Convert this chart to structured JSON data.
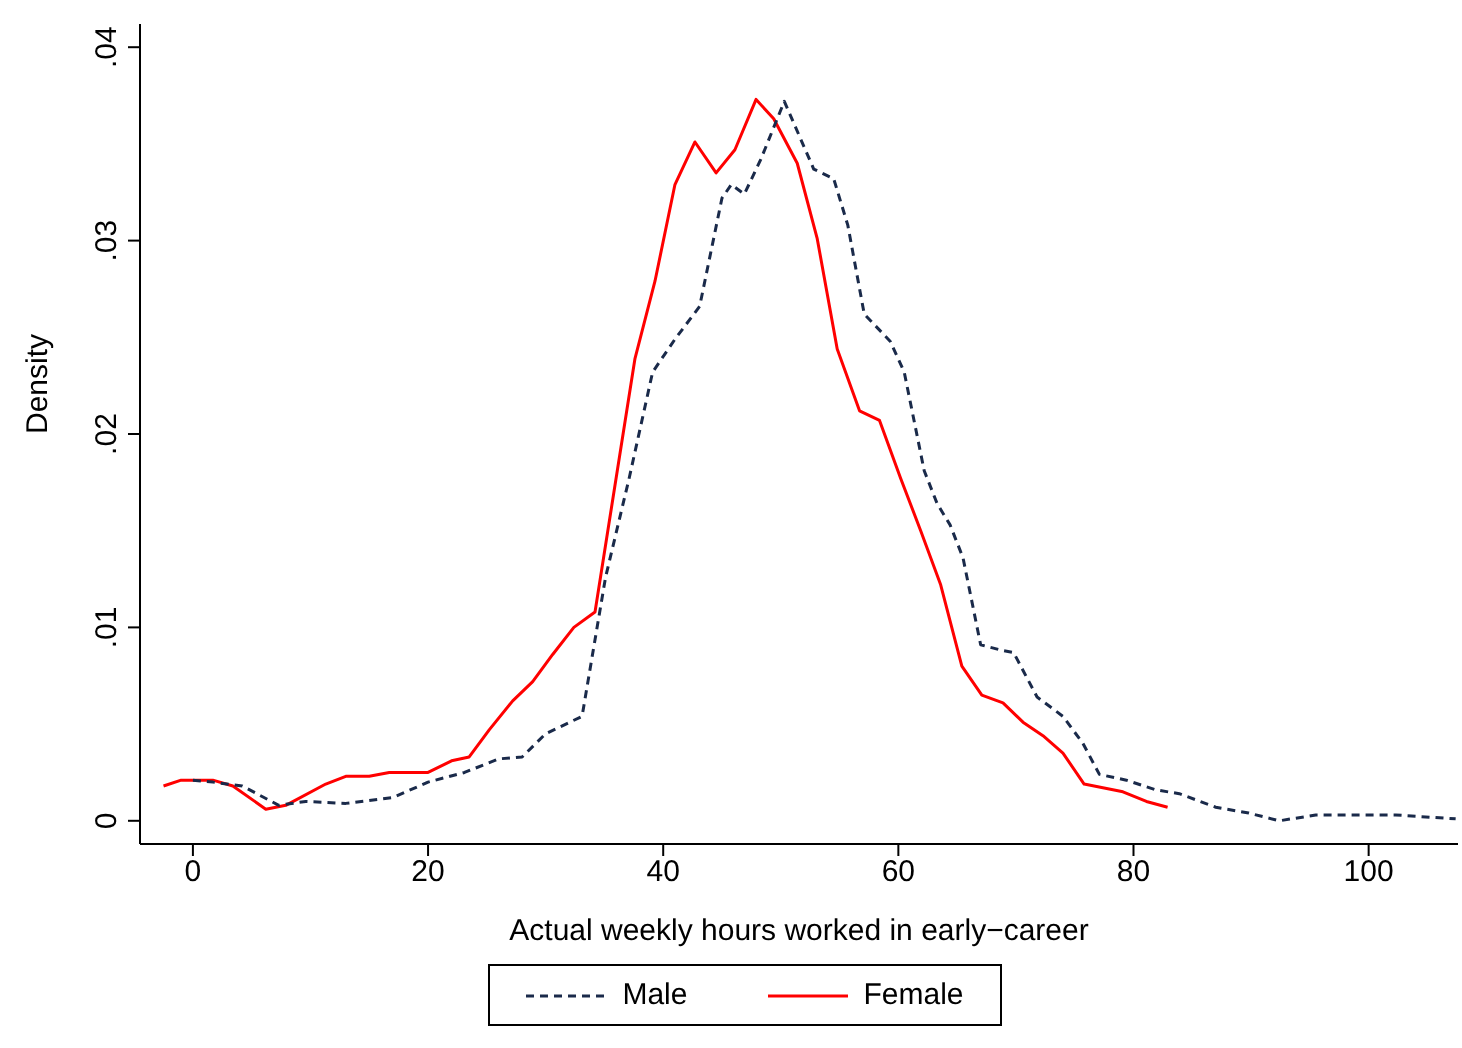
{
  "chart_data": {
    "type": "line",
    "xlabel": "Actual weekly hours worked in early−career",
    "ylabel": "Density",
    "xlim": [
      -4.5,
      107.6
    ],
    "xticks": [
      0,
      20,
      40,
      60,
      80,
      100
    ],
    "ylim": [
      -0.0012,
      0.0412
    ],
    "yticks": [
      {
        "value": 0,
        "label": "0"
      },
      {
        "value": 0.01,
        "label": ".01"
      },
      {
        "value": 0.02,
        "label": ".02"
      },
      {
        "value": 0.03,
        "label": ".03"
      },
      {
        "value": 0.04,
        "label": ".04"
      }
    ],
    "grid": false,
    "legend": "bottom",
    "marker": "none",
    "series": [
      {
        "name": "Male",
        "color": "#1a2a4a",
        "line_style": "dashed",
        "x": [
          0,
          1.7,
          4.2,
          7.3,
          9.6,
          13,
          17,
          20,
          23.1,
          26,
          28,
          30,
          33.1,
          35.1,
          37.1,
          39.1,
          41,
          43.1,
          45,
          45.8,
          46.9,
          48.3,
          50.3,
          52.8,
          54.5,
          55.7,
          57.1,
          59.3,
          60.5,
          62.2,
          63.3,
          64.4,
          65.5,
          67,
          68.9,
          69.8,
          71.8,
          74,
          75.7,
          77.1,
          79.4,
          81.9,
          83.9,
          87,
          89.8,
          92.4,
          95.5,
          98.3,
          102.3,
          107.4
        ],
        "values": [
          0.0021,
          0.002,
          0.0018,
          0.0008,
          0.001,
          0.0009,
          0.0012,
          0.002,
          0.0025,
          0.0032,
          0.0033,
          0.0045,
          0.0054,
          0.0126,
          0.0177,
          0.0232,
          0.0249,
          0.0266,
          0.0322,
          0.0329,
          0.0324,
          0.0342,
          0.0372,
          0.0337,
          0.0332,
          0.0308,
          0.0262,
          0.0248,
          0.0232,
          0.0181,
          0.0164,
          0.0153,
          0.0136,
          0.0091,
          0.0088,
          0.0087,
          0.0064,
          0.0054,
          0.004,
          0.0024,
          0.0021,
          0.0016,
          0.0014,
          0.0007,
          0.0004,
          0,
          0.0003,
          0.0003,
          0.0003,
          0.0001
        ]
      },
      {
        "name": "Female",
        "color": "#ff0000",
        "line_style": "solid",
        "x": [
          -2.5,
          -1,
          1.7,
          3.4,
          6.2,
          7.9,
          11.3,
          13,
          15,
          16.7,
          20,
          22,
          23.5,
          25.2,
          27.2,
          28.9,
          30.6,
          32.4,
          34.2,
          37.6,
          39.3,
          41,
          42.7,
          44.5,
          46.1,
          47.9,
          49.4,
          51.4,
          53.1,
          54.8,
          56.7,
          58.4,
          60.2,
          61.9,
          63.6,
          65.4,
          67.1,
          68.9,
          70.6,
          72.3,
          74,
          75.8,
          79.1,
          81.1,
          82.9
        ],
        "values": [
          0.0018,
          0.0021,
          0.0021,
          0.0018,
          0.0006,
          0.0008,
          0.0019,
          0.0023,
          0.0023,
          0.0025,
          0.0025,
          0.0031,
          0.0033,
          0.0047,
          0.0062,
          0.0072,
          0.0086,
          0.01,
          0.0108,
          0.0239,
          0.0279,
          0.0329,
          0.0351,
          0.0335,
          0.0347,
          0.0373,
          0.0363,
          0.034,
          0.0301,
          0.0244,
          0.0212,
          0.0207,
          0.0177,
          0.015,
          0.0122,
          0.008,
          0.0065,
          0.0061,
          0.0051,
          0.0044,
          0.0035,
          0.0019,
          0.0015,
          0.001,
          0.0007
        ]
      }
    ]
  }
}
